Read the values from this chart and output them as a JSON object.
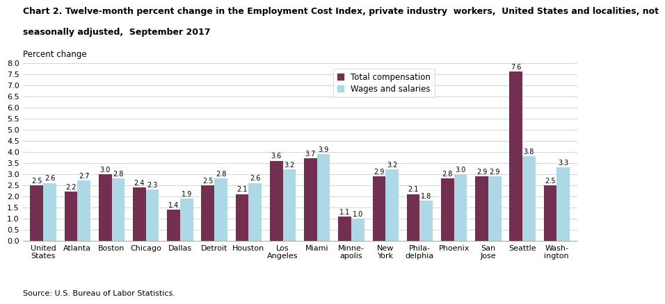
{
  "categories": [
    "United\nStates",
    "Atlanta",
    "Boston",
    "Chicago",
    "Dallas",
    "Detroit",
    "Houston",
    "Los\nAngeles",
    "Miami",
    "Minne-\napolis",
    "New\nYork",
    "Phila-\ndelphia",
    "Phoenix",
    "San\nJose",
    "Seattle",
    "Wash-\nington"
  ],
  "total_compensation": [
    2.5,
    2.2,
    3.0,
    2.4,
    1.4,
    2.5,
    2.1,
    3.6,
    3.7,
    1.1,
    2.9,
    2.1,
    2.8,
    2.9,
    7.6,
    2.5
  ],
  "wages_and_salaries": [
    2.6,
    2.7,
    2.8,
    2.3,
    1.9,
    2.8,
    2.6,
    3.2,
    3.9,
    1.0,
    3.2,
    1.8,
    3.0,
    2.9,
    3.8,
    3.3
  ],
  "total_comp_color": "#722F50",
  "wages_color": "#ADD8E6",
  "title_line1": "Chart 2. Twelve-month percent change in the Employment Cost Index, private industry  workers,  United States and localities, not",
  "title_line2": "seasonally adjusted,  September 2017",
  "ylabel": "Percent change",
  "ylim": [
    0.0,
    8.0
  ],
  "yticks": [
    0.0,
    0.5,
    1.0,
    1.5,
    2.0,
    2.5,
    3.0,
    3.5,
    4.0,
    4.5,
    5.0,
    5.5,
    6.0,
    6.5,
    7.0,
    7.5,
    8.0
  ],
  "source": "Source: U.S. Bureau of Labor Statistics.",
  "legend_labels": [
    "Total compensation",
    "Wages and salaries"
  ],
  "bar_width": 0.38,
  "label_fontsize": 7.0,
  "title_fontsize": 9.0,
  "axis_label_fontsize": 8.5,
  "tick_fontsize": 8.0,
  "source_fontsize": 8.0,
  "legend_fontsize": 8.5
}
